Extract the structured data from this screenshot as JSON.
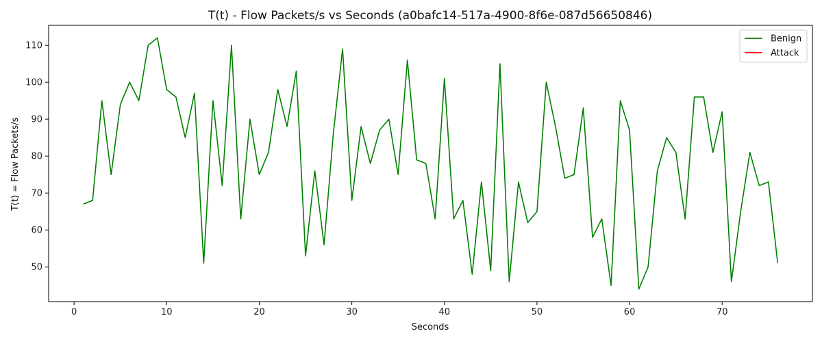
{
  "chart_data": {
    "type": "line",
    "title": "T(t) - Flow Packets/s vs Seconds (a0bafc14-517a-4900-8f6e-087d56650846)",
    "xlabel": "Seconds",
    "ylabel": "T(t) = Flow Packets/s",
    "xlim": [
      -2.75,
      79.75
    ],
    "ylim": [
      40.6,
      115.4
    ],
    "xticks": [
      0,
      10,
      20,
      30,
      40,
      50,
      60,
      70
    ],
    "yticks": [
      50,
      60,
      70,
      80,
      90,
      100,
      110
    ],
    "grid": false,
    "legend_position": "top-right",
    "series": [
      {
        "name": "Benign",
        "color": "#008000",
        "x": [
          1,
          2,
          3,
          4,
          5,
          6,
          7,
          8,
          9,
          10,
          11,
          12,
          13,
          14,
          15,
          16,
          17,
          18,
          19,
          20,
          21,
          22,
          23,
          24,
          25,
          26,
          27,
          28,
          29,
          30,
          31,
          32,
          33,
          34,
          35,
          36,
          37,
          38,
          39,
          40,
          41,
          42,
          43,
          44,
          45,
          46,
          47,
          48,
          49,
          50,
          51,
          52,
          53,
          54,
          55,
          56,
          57,
          58,
          59,
          60,
          61,
          62,
          63,
          64,
          65,
          66,
          67,
          68,
          69,
          70,
          71,
          72,
          73,
          74,
          75,
          76
        ],
        "y": [
          67,
          68,
          95,
          75,
          94,
          100,
          95,
          110,
          112,
          98,
          96,
          85,
          97,
          51,
          95,
          72,
          110,
          63,
          90,
          75,
          81,
          98,
          88,
          103,
          53,
          76,
          56,
          86,
          109,
          68,
          88,
          78,
          87,
          90,
          75,
          106,
          79,
          78,
          63,
          101,
          63,
          68,
          48,
          73,
          49,
          105,
          46,
          73,
          62,
          65,
          100,
          88,
          74,
          75,
          93,
          58,
          63,
          45,
          95,
          87,
          44,
          50,
          76,
          85,
          81,
          63,
          96,
          96,
          81,
          92,
          46,
          65,
          81,
          72,
          73,
          51
        ]
      },
      {
        "name": "Attack",
        "color": "#ff0000",
        "x": [],
        "y": []
      }
    ]
  }
}
